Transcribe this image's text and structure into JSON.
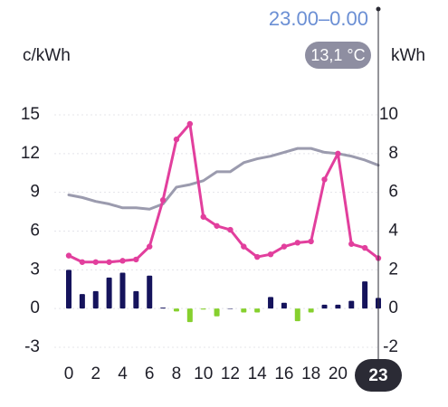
{
  "chart_data": {
    "type": "combo",
    "y_label": "c/kWh",
    "y2_label": "kWh",
    "selected": {
      "hour": 23,
      "period": "23.00–0.00",
      "temperature": "13,1 °C"
    },
    "x": [
      0,
      1,
      2,
      3,
      4,
      5,
      6,
      7,
      8,
      9,
      10,
      11,
      12,
      13,
      14,
      15,
      16,
      17,
      18,
      19,
      20,
      21,
      22,
      23
    ],
    "xlim": [
      0,
      23
    ],
    "xticks": [
      0,
      2,
      4,
      6,
      8,
      10,
      12,
      14,
      16,
      18,
      20
    ],
    "ylim": [
      -3,
      15
    ],
    "yticks": [
      -3,
      0,
      3,
      6,
      9,
      12,
      15
    ],
    "y2lim": [
      -2,
      10
    ],
    "y2ticks": [
      -2,
      0,
      2,
      4,
      6,
      8,
      10
    ],
    "grid": true,
    "series": [
      {
        "type": "bar",
        "axis": "y2",
        "colors": {
          "positive": "#15135c",
          "negative": "#86d02e"
        },
        "values": [
          2.0,
          0.75,
          0.9,
          1.6,
          1.85,
          0.9,
          1.7,
          0.05,
          -0.15,
          -0.7,
          -0.05,
          -0.4,
          0,
          -0.2,
          -0.2,
          0.6,
          0.3,
          -0.65,
          -0.2,
          0.2,
          0.2,
          0.4,
          1.4,
          0.55
        ]
      },
      {
        "type": "line",
        "color": "#9b9bae",
        "values": [
          8.8,
          8.6,
          8.3,
          8.1,
          7.8,
          7.8,
          7.7,
          8.1,
          9.4,
          9.6,
          9.9,
          10.6,
          10.6,
          11.3,
          11.6,
          11.8,
          12.1,
          12.4,
          12.4,
          12.1,
          12.0,
          11.8,
          11.5,
          11.1
        ]
      },
      {
        "type": "line",
        "color": "#e23f9d",
        "markers": true,
        "values": [
          4.1,
          3.6,
          3.6,
          3.6,
          3.7,
          3.8,
          4.8,
          8.4,
          13.1,
          14.3,
          7.1,
          6.4,
          6.1,
          4.8,
          4.0,
          4.2,
          4.8,
          5.1,
          5.2,
          10.0,
          12.0,
          5.0,
          4.7,
          3.9
        ]
      }
    ]
  }
}
